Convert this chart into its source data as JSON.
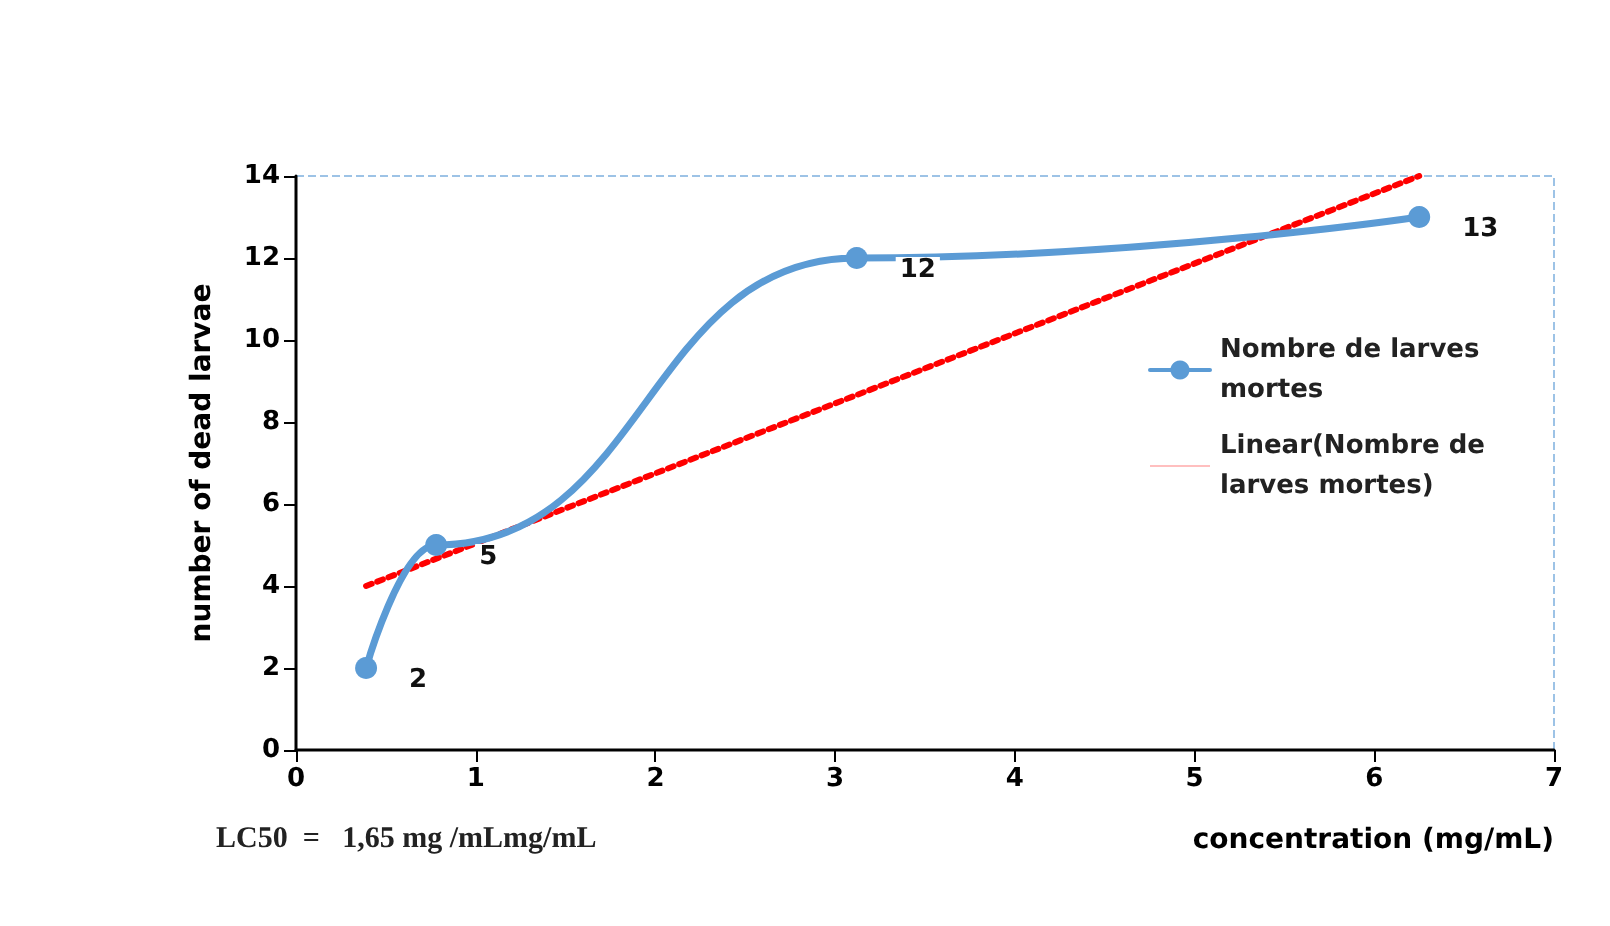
{
  "chart_data": {
    "type": "line",
    "xlabel": "concentration (mg/mL)",
    "ylabel": "number of dead larvae",
    "x": [
      0.39,
      0.78,
      3.12,
      6.25
    ],
    "series": [
      {
        "name": "Nombre de larves mortes",
        "color": "#5b9bd5",
        "values": [
          2,
          5,
          12,
          13
        ],
        "value_labels": [
          "2",
          "5",
          "12",
          "13"
        ]
      },
      {
        "name": "Linear(Nombre de larves mortes)",
        "color": "#ff0000",
        "x": [
          0.39,
          6.25
        ],
        "values": [
          4,
          14
        ],
        "marker": "none",
        "line_style": "dotted"
      }
    ],
    "xlim": [
      0,
      7
    ],
    "xticks": [
      0,
      1,
      2,
      3,
      4,
      5,
      6,
      7
    ],
    "ylim": [
      0,
      14
    ],
    "yticks": [
      0,
      2,
      4,
      6,
      8,
      10,
      12,
      14
    ],
    "marker": "circle",
    "line_style": "solid",
    "grid": false,
    "legend": "right",
    "annotations": [
      "LC50  =   1,65 mg /mLmg/mL"
    ]
  }
}
